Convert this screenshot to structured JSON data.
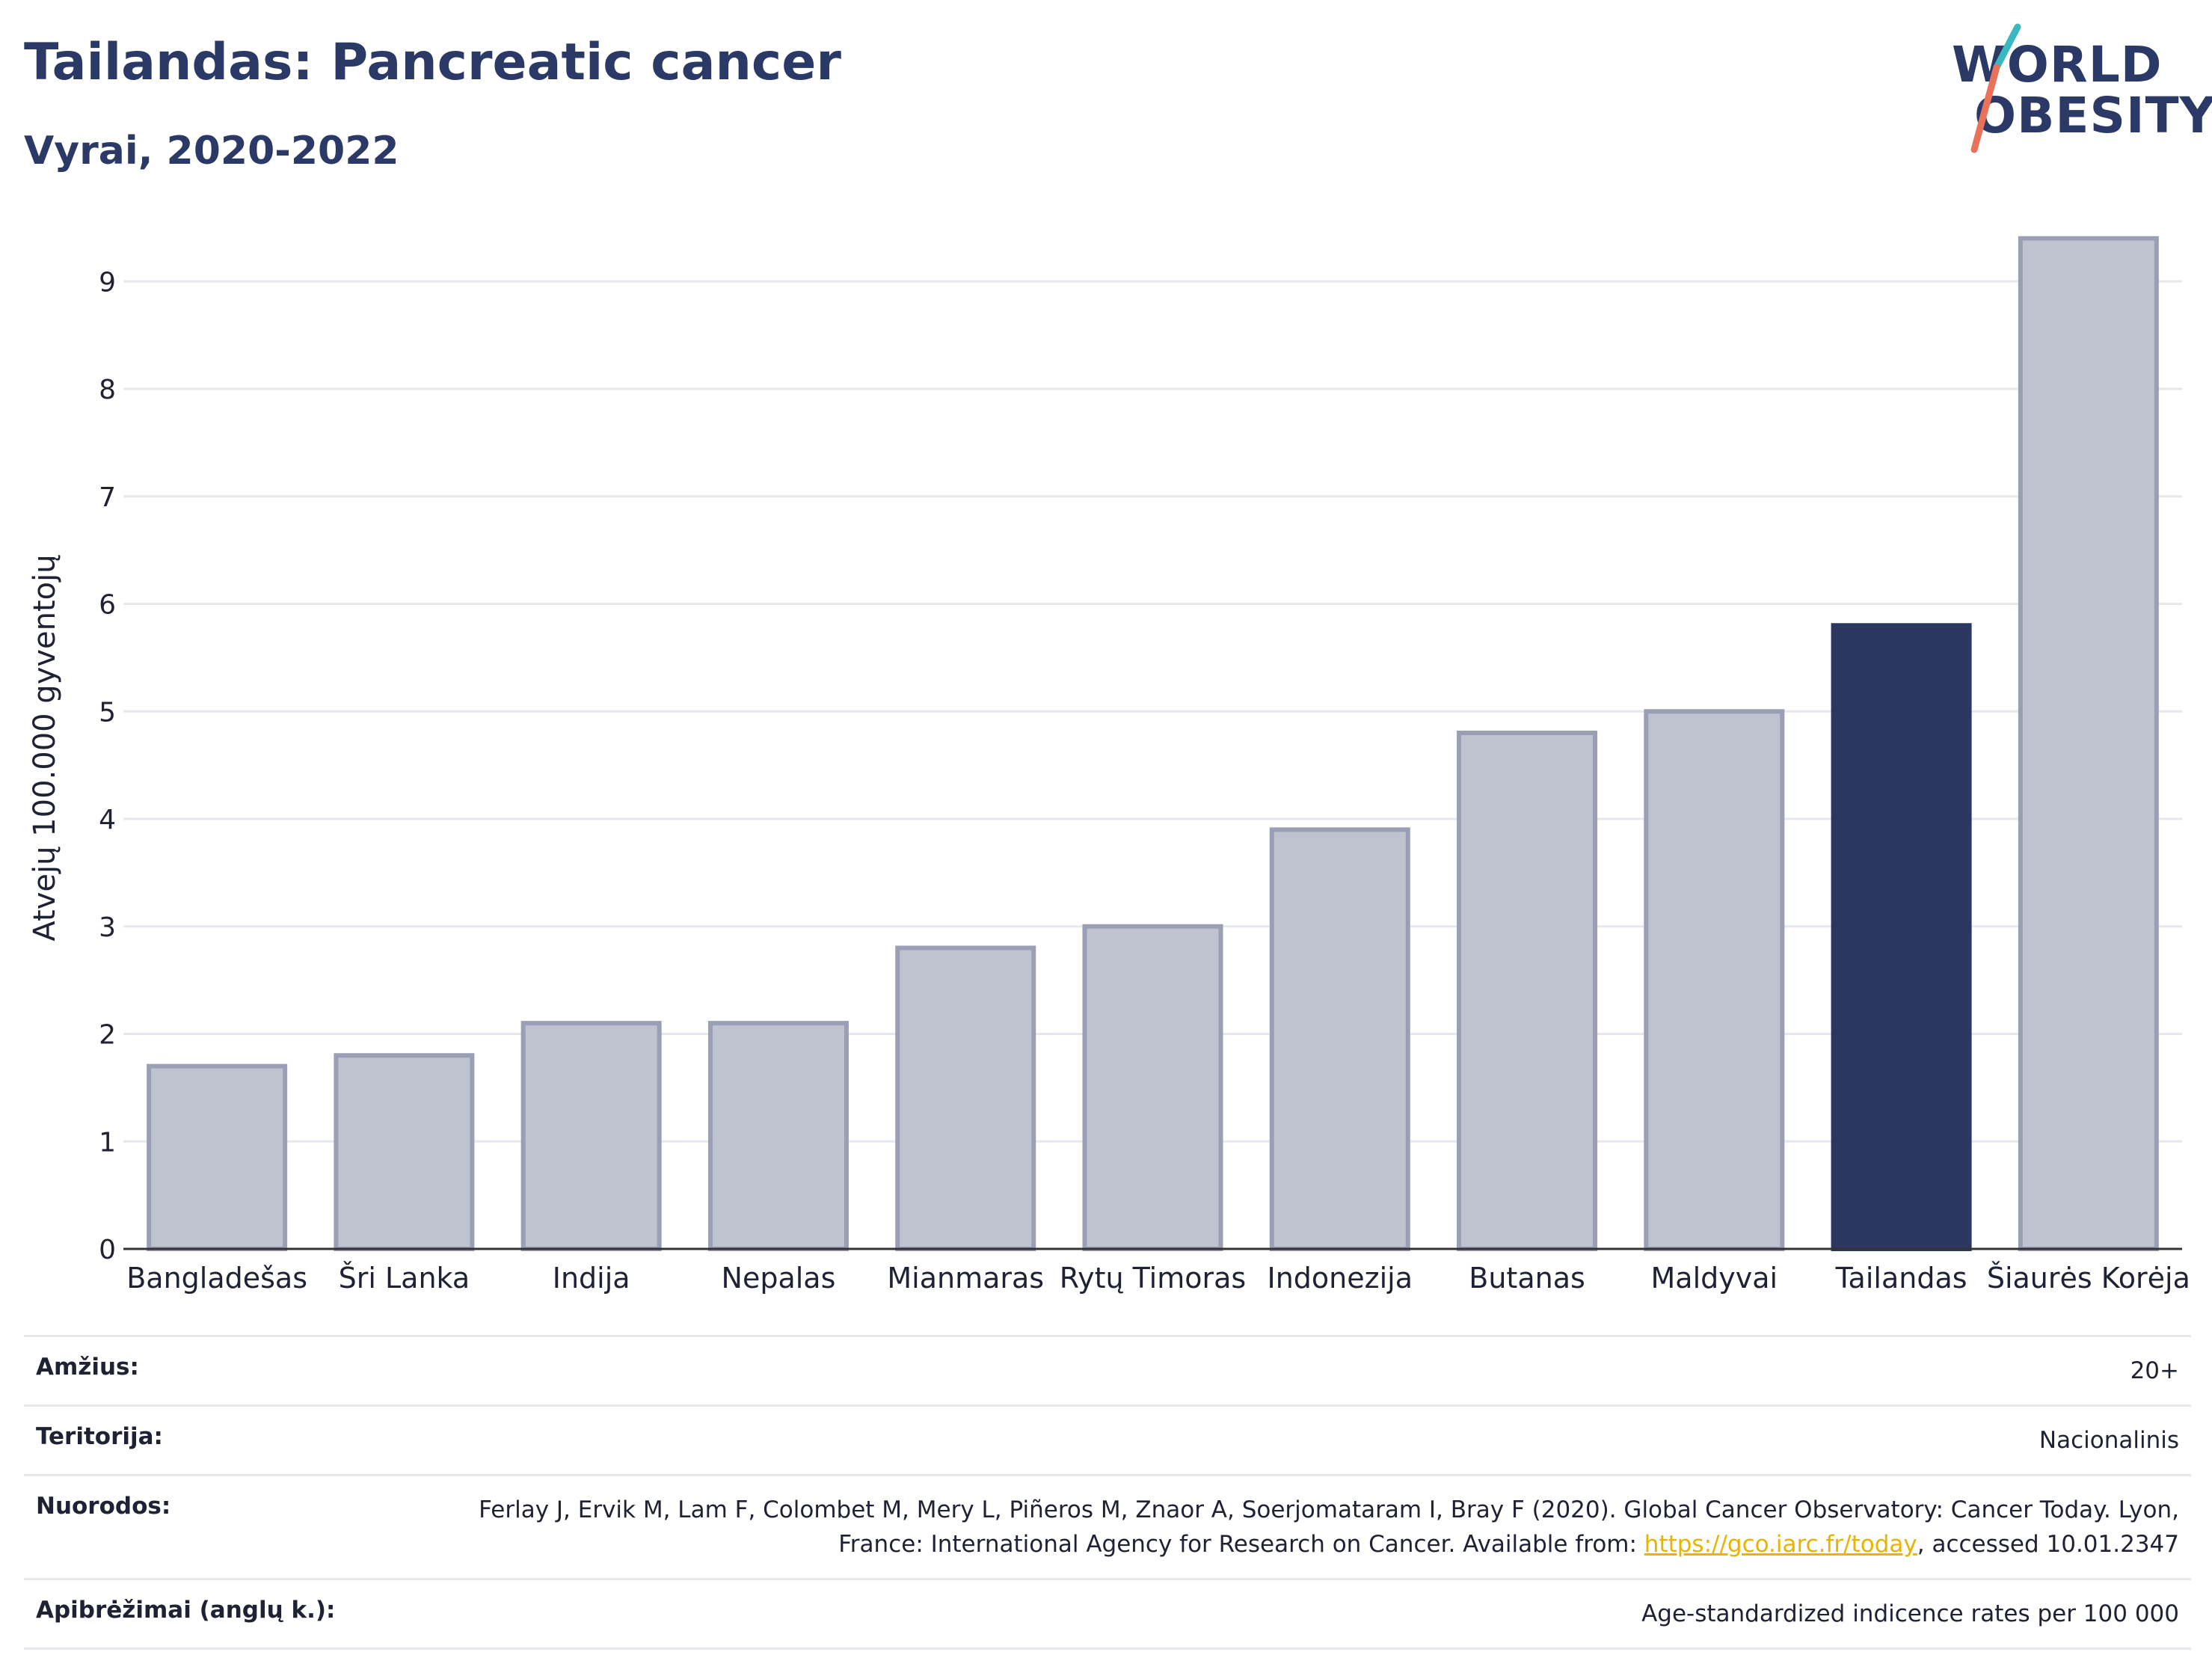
{
  "header": {
    "title": "Tailandas: Pancreatic cancer",
    "subtitle": "Vyrai, 2020-2022"
  },
  "logo": {
    "line1": "WORLD",
    "line2": "OBESITY",
    "slash_colors": [
      "#3ab7bf",
      "#e8735a"
    ]
  },
  "colors": {
    "bar_default": "#bfc2cf",
    "bar_default_border": "#9a9fb5",
    "bar_highlight": "#2b3661",
    "grid": "#e6e8ee",
    "axis": "#333333",
    "link": "#e8b400"
  },
  "chart_data": {
    "type": "bar",
    "ylabel": "Atvejų 100.000 gyventojų",
    "ylim": [
      0,
      9.6
    ],
    "yticks": [
      0,
      1,
      2,
      3,
      4,
      5,
      6,
      7,
      8,
      9
    ],
    "grid": true,
    "highlight": "Tailandas",
    "categories": [
      "Bangladešas",
      "Šri Lanka",
      "Indija",
      "Nepalas",
      "Mianmaras",
      "Rytų Timoras",
      "Indonezija",
      "Butanas",
      "Maldyvai",
      "Tailandas",
      "Šiaurės Korėja"
    ],
    "values": [
      1.7,
      1.8,
      2.1,
      2.1,
      2.8,
      3.0,
      3.9,
      4.8,
      5.0,
      5.8,
      9.4
    ]
  },
  "meta": [
    {
      "label": "Amžius:",
      "value": "20+"
    },
    {
      "label": "Teritorija:",
      "value": "Nacionalinis"
    },
    {
      "label": "Nuorodos:",
      "value_before": "Ferlay J, Ervik M, Lam F, Colombet M, Mery L, Piñeros M, Znaor A, Soerjomataram I, Bray F (2020). Global Cancer Observatory: Cancer Today. Lyon, France: International Agency for Research on Cancer. Available from: ",
      "link": "https://gco.iarc.fr/today",
      "value_after": ", accessed 10.01.2347"
    },
    {
      "label": "Apibrėžimai (anglų k.):",
      "value": "Age-standardized indicence rates per 100 000"
    }
  ]
}
